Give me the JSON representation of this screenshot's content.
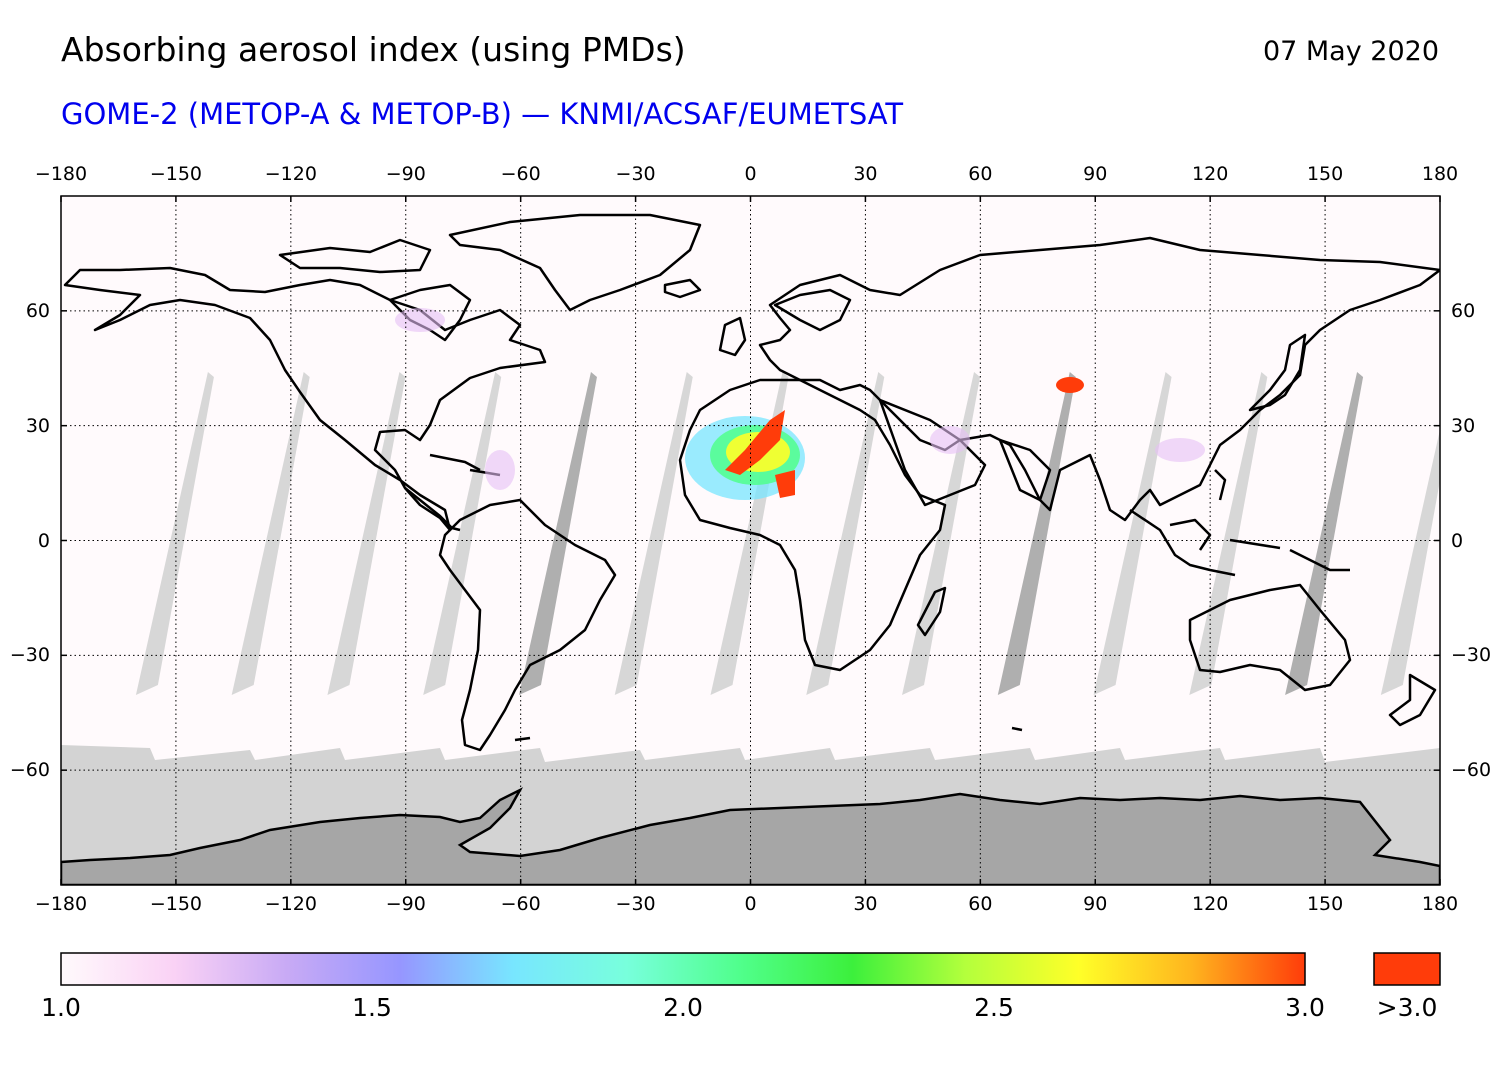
{
  "header": {
    "title": "Absorbing aerosol index (using PMDs)",
    "date": "07 May 2020",
    "subtitle": "GOME-2 (METOP-A & METOP-B) — KNMI/ACSAF/EUMETSAT",
    "subtitle_color": "#0000ee"
  },
  "map": {
    "projection": "equirectangular",
    "lon_range": [
      -180,
      180
    ],
    "lat_range": [
      -90,
      90
    ],
    "lon_ticks": [
      "−180",
      "−150",
      "−120",
      "−90",
      "−60",
      "−30",
      "0",
      "30",
      "60",
      "90",
      "120",
      "150",
      "180"
    ],
    "lat_ticks": [
      "60",
      "30",
      "0",
      "−30",
      "−60"
    ],
    "gridlines": "dotted",
    "no_data_color": "#d3d3d3",
    "land_no_data_color": "#a6a6a6",
    "background_color": "#fffafc",
    "coastline_color": "#000000"
  },
  "colorbar": {
    "labels": [
      "1.0",
      "1.5",
      "2.0",
      "2.5",
      "3.0"
    ],
    "overflow_label": ">3.0",
    "overflow_color": "#ff3c0a",
    "stops": [
      "#fffafc",
      "#fad2f5",
      "#c8aaf5",
      "#9696ff",
      "#78e6ff",
      "#78ffdc",
      "#50ff8c",
      "#3cf03c",
      "#b4ff3c",
      "#ffff28",
      "#ffb41e",
      "#ff3c0a"
    ]
  }
}
